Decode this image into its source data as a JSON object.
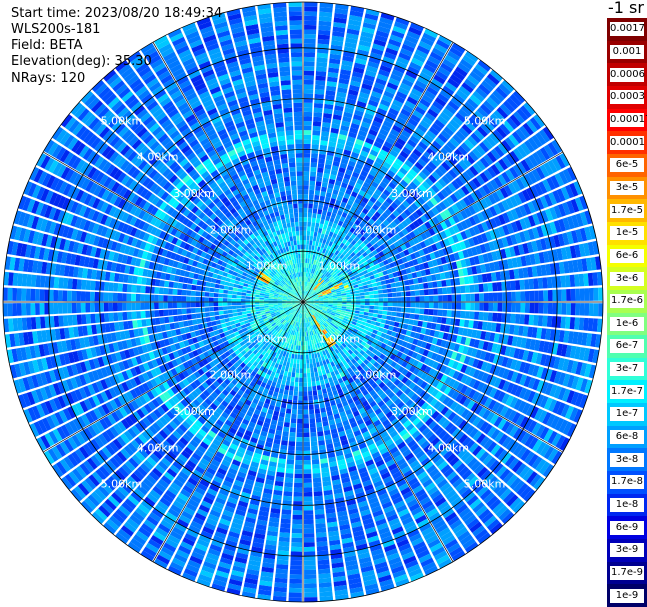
{
  "info": {
    "start_time": "Start time: 2023/08/20 18:49:34",
    "system": "WLS200s-181",
    "field": "Field: BETA",
    "elevation": "Elevation(deg): 35.30",
    "nrays": "NRays: 120"
  },
  "chart_data": {
    "type": "heatmap",
    "subtype": "polar PPI scan",
    "range_rings": [
      "1.00km",
      "2.00km",
      "3.00km",
      "4.00km",
      "5.00km"
    ],
    "max_range_km": 5.9,
    "rays": 120,
    "colorbar": {
      "unit_fragment": "-1 sr",
      "labels": [
        "0.0017",
        "0.001",
        "0.0006",
        "0.0003",
        "0.00017",
        "0.0001",
        "6e-5",
        "3e-5",
        "1.7e-5",
        "1e-5",
        "6e-6",
        "3e-6",
        "1.7e-6",
        "1e-6",
        "6e-7",
        "3e-7",
        "1.7e-7",
        "1e-7",
        "6e-8",
        "3e-8",
        "1.7e-8",
        "1e-8",
        "6e-9",
        "3e-9",
        "1.7e-9",
        "1e-9"
      ],
      "colors": [
        "#7f0000",
        "#990000",
        "#c00000",
        "#e00000",
        "#ff0000",
        "#ff3000",
        "#ff6400",
        "#ff9000",
        "#ffb800",
        "#ffe000",
        "#f4ff00",
        "#d4ff20",
        "#a8ff50",
        "#80ff80",
        "#50ffb0",
        "#30ffd8",
        "#00f0ff",
        "#00c8ff",
        "#00a0ff",
        "#0078ff",
        "#0050ff",
        "#0028f0",
        "#0000e0",
        "#0000b8",
        "#000090",
        "#000068"
      ]
    },
    "scale": "log",
    "typical_values": {
      "near_range_0_1km": "1.7e-7",
      "mid_range_1_3km": "3e-8",
      "far_range_3_6km": "3e-8",
      "ring_band_3.2km": "1e-7",
      "hotspots": "1.7e-5"
    },
    "hotspots": [
      {
        "azimuth_deg": 300,
        "range_km_start": 0.75,
        "range_km_end": 1.0
      },
      {
        "azimuth_deg": 65,
        "range_km_start": 0.25,
        "range_km_end": 0.9
      },
      {
        "azimuth_deg": 40,
        "range_km_start": 0.3,
        "range_km_end": 0.6
      },
      {
        "azimuth_deg": 145,
        "range_km_start": 0.15,
        "range_km_end": 1.0
      }
    ]
  }
}
